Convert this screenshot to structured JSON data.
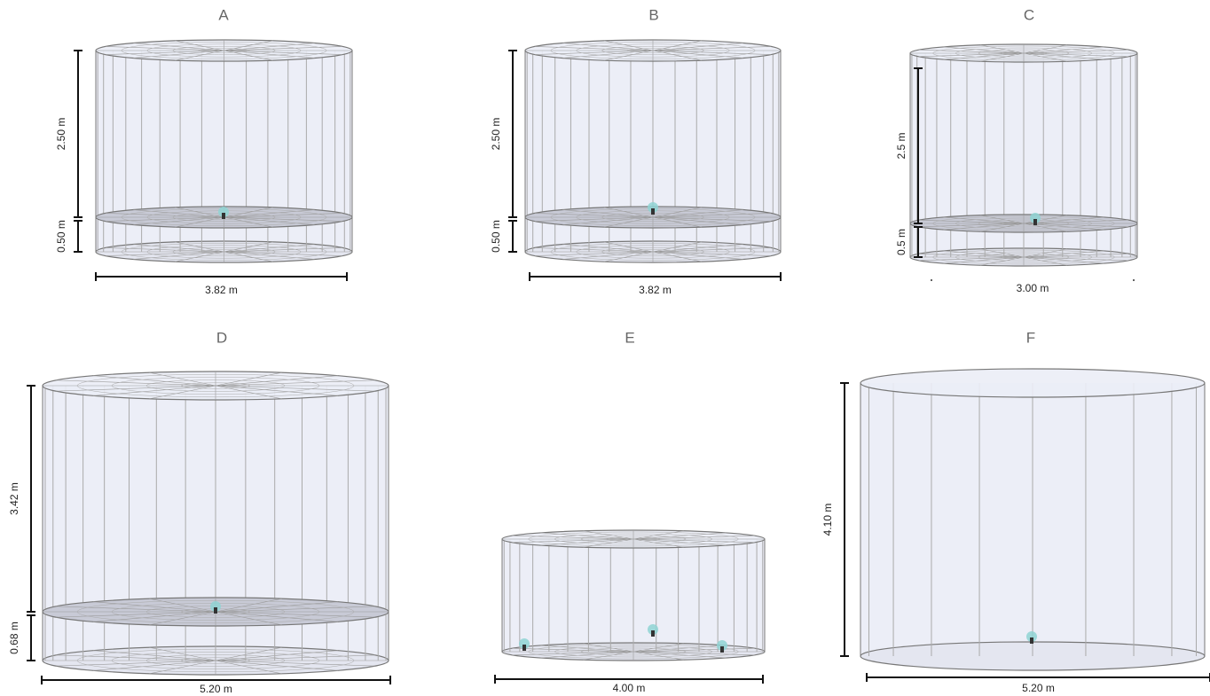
{
  "panels": [
    {
      "label": "A",
      "height_upper": "2.50 m",
      "height_lower": "0.50 m",
      "width": "3.82 m"
    },
    {
      "label": "B",
      "height_upper": "2.50 m",
      "height_lower": "0.50 m",
      "width": "3.82 m"
    },
    {
      "label": "C",
      "height_upper": "2.5 m",
      "height_lower": "0.5 m",
      "width": "3.00 m"
    },
    {
      "label": "D",
      "height_upper": "3.42 m",
      "height_lower": "0.68 m",
      "width": "5.20 m"
    },
    {
      "label": "E",
      "width": "4.00 m"
    },
    {
      "label": "F",
      "height_upper": "4.10 m",
      "width": "5.20 m"
    }
  ]
}
